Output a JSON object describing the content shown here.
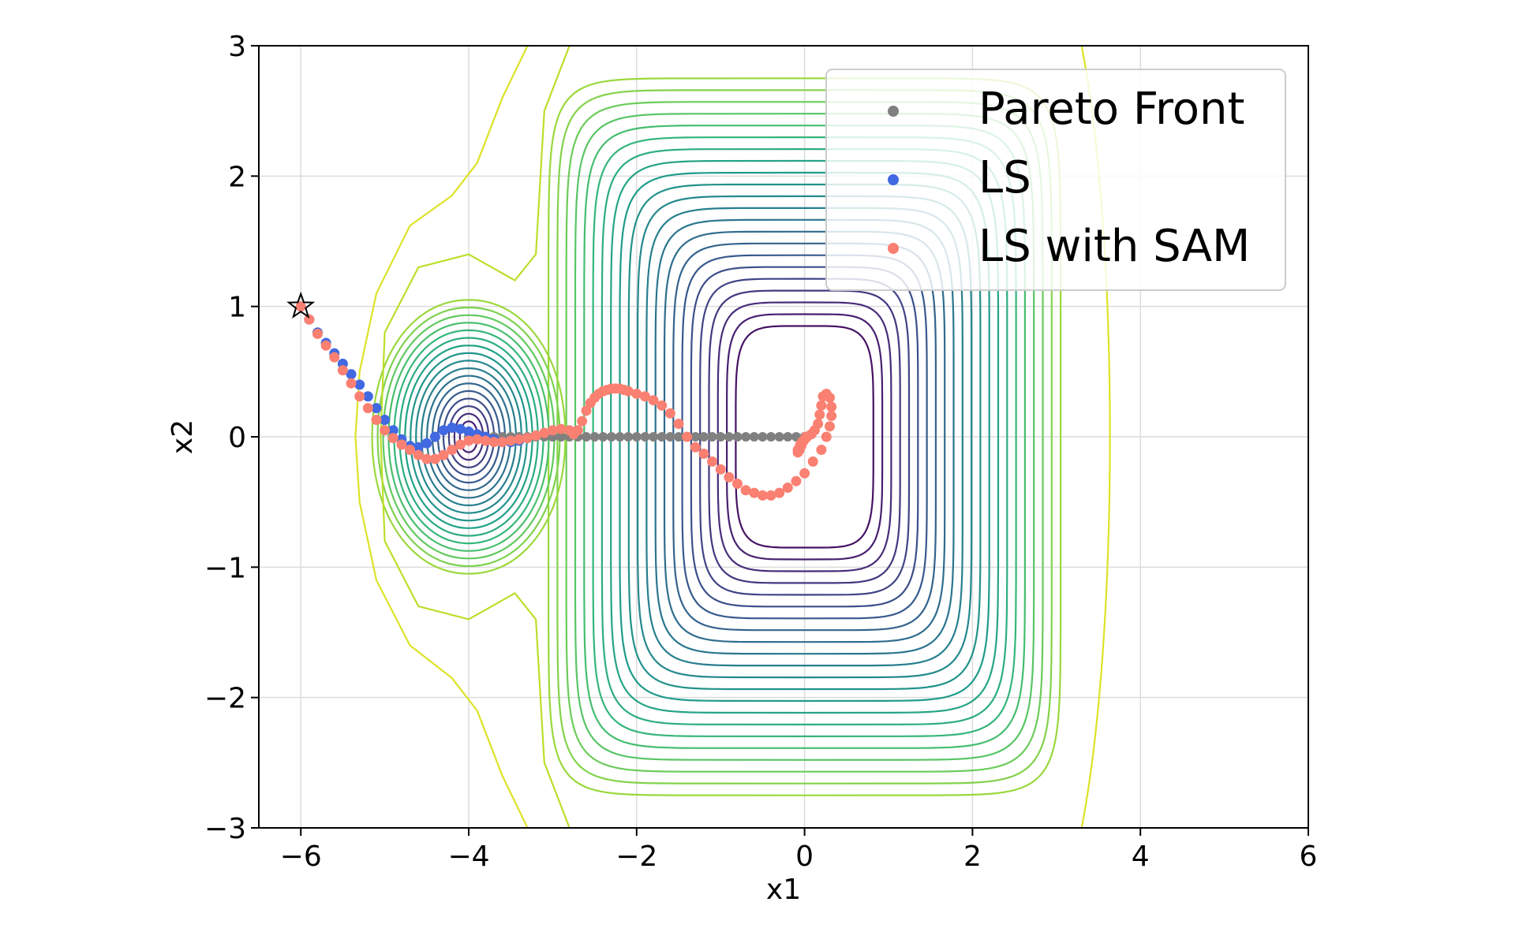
{
  "chart_data": {
    "type": "scatter",
    "title": "",
    "xlabel": "x1",
    "ylabel": "x2",
    "xlim": [
      -6.5,
      6
    ],
    "ylim": [
      -3,
      3
    ],
    "xticks": [
      -6,
      -4,
      -2,
      0,
      2,
      4,
      6
    ],
    "yticks": [
      -3,
      -2,
      -1,
      0,
      1,
      2,
      3
    ],
    "xtick_labels": [
      "−6",
      "−4",
      "−2",
      "0",
      "2",
      "4",
      "6"
    ],
    "ytick_labels": [
      "−3",
      "−2",
      "−1",
      "0",
      "1",
      "2",
      "3"
    ],
    "grid": true,
    "legend_position": "top-right",
    "background": "contour plot of two-minimum loss landscape (viridis), minima near (-4, 0) and (0, 0)",
    "start_marker": {
      "symbol": "star",
      "x": -6,
      "y": 1
    },
    "series": [
      {
        "name": "Pareto Front",
        "color": "#808080",
        "x_range": [
          -4,
          0
        ],
        "y": 0
      },
      {
        "name": "LS",
        "color": "#4169e1",
        "points": [
          [
            -6.0,
            1.0
          ],
          [
            -5.9,
            0.9
          ],
          [
            -5.8,
            0.8
          ],
          [
            -5.7,
            0.72
          ],
          [
            -5.6,
            0.64
          ],
          [
            -5.5,
            0.56
          ],
          [
            -5.4,
            0.48
          ],
          [
            -5.3,
            0.4
          ],
          [
            -5.2,
            0.31
          ],
          [
            -5.1,
            0.22
          ],
          [
            -5.0,
            0.13
          ],
          [
            -4.9,
            0.05
          ],
          [
            -4.8,
            -0.02
          ],
          [
            -4.7,
            -0.07
          ],
          [
            -4.6,
            -0.08
          ],
          [
            -4.5,
            -0.05
          ],
          [
            -4.4,
            0.0
          ],
          [
            -4.3,
            0.05
          ],
          [
            -4.2,
            0.07
          ],
          [
            -4.1,
            0.06
          ],
          [
            -4.0,
            0.04
          ],
          [
            -3.9,
            0.02
          ],
          [
            -3.8,
            0.0
          ],
          [
            -3.7,
            -0.02
          ],
          [
            -3.6,
            -0.04
          ],
          [
            -3.5,
            -0.04
          ],
          [
            -3.4,
            -0.03
          ]
        ]
      },
      {
        "name": "LS with SAM",
        "color": "#fa8072",
        "points": [
          [
            -6.0,
            1.0
          ],
          [
            -5.9,
            0.9
          ],
          [
            -5.8,
            0.79
          ],
          [
            -5.7,
            0.7
          ],
          [
            -5.6,
            0.61
          ],
          [
            -5.5,
            0.51
          ],
          [
            -5.4,
            0.41
          ],
          [
            -5.3,
            0.31
          ],
          [
            -5.2,
            0.22
          ],
          [
            -5.1,
            0.13
          ],
          [
            -5.0,
            0.05
          ],
          [
            -4.9,
            -0.01
          ],
          [
            -4.8,
            -0.06
          ],
          [
            -4.7,
            -0.1
          ],
          [
            -4.6,
            -0.14
          ],
          [
            -4.5,
            -0.17
          ],
          [
            -4.4,
            -0.17
          ],
          [
            -4.3,
            -0.14
          ],
          [
            -4.2,
            -0.1
          ],
          [
            -4.1,
            -0.06
          ],
          [
            -4.0,
            -0.03
          ],
          [
            -3.9,
            -0.02
          ],
          [
            -3.8,
            -0.03
          ],
          [
            -3.7,
            -0.04
          ],
          [
            -3.6,
            -0.04
          ],
          [
            -3.5,
            -0.03
          ],
          [
            -3.4,
            -0.02
          ],
          [
            -3.3,
            -0.01
          ],
          [
            -3.2,
            0.01
          ],
          [
            -3.1,
            0.03
          ],
          [
            -3.0,
            0.05
          ],
          [
            -2.9,
            0.06
          ],
          [
            -2.8,
            0.05
          ],
          [
            -2.75,
            0.02
          ],
          [
            -2.7,
            0.05
          ],
          [
            -2.65,
            0.12
          ],
          [
            -2.6,
            0.2
          ],
          [
            -2.55,
            0.26
          ],
          [
            -2.5,
            0.3
          ],
          [
            -2.45,
            0.33
          ],
          [
            -2.4,
            0.35
          ],
          [
            -2.35,
            0.36
          ],
          [
            -2.3,
            0.37
          ],
          [
            -2.25,
            0.37
          ],
          [
            -2.2,
            0.37
          ],
          [
            -2.15,
            0.36
          ],
          [
            -2.1,
            0.35
          ],
          [
            -2.0,
            0.33
          ],
          [
            -1.9,
            0.31
          ],
          [
            -1.8,
            0.28
          ],
          [
            -1.7,
            0.24
          ],
          [
            -1.6,
            0.18
          ],
          [
            -1.5,
            0.1
          ],
          [
            -1.4,
            0.0
          ],
          [
            -1.3,
            -0.08
          ],
          [
            -1.2,
            -0.13
          ],
          [
            -1.1,
            -0.19
          ],
          [
            -1.0,
            -0.25
          ],
          [
            -0.9,
            -0.31
          ],
          [
            -0.8,
            -0.36
          ],
          [
            -0.7,
            -0.41
          ],
          [
            -0.6,
            -0.43
          ],
          [
            -0.5,
            -0.45
          ],
          [
            -0.4,
            -0.45
          ],
          [
            -0.3,
            -0.43
          ],
          [
            -0.2,
            -0.39
          ],
          [
            -0.1,
            -0.34
          ],
          [
            0.0,
            -0.28
          ],
          [
            0.1,
            -0.19
          ],
          [
            0.2,
            -0.1
          ],
          [
            0.26,
            0.0
          ],
          [
            0.3,
            0.08
          ],
          [
            0.32,
            0.16
          ],
          [
            0.32,
            0.23
          ],
          [
            0.3,
            0.3
          ],
          [
            0.26,
            0.33
          ],
          [
            0.22,
            0.31
          ],
          [
            0.2,
            0.24
          ],
          [
            0.18,
            0.17
          ],
          [
            0.16,
            0.1
          ],
          [
            0.12,
            0.05
          ],
          [
            0.08,
            0.02
          ],
          [
            0.03,
            0.0
          ],
          [
            0.0,
            -0.02
          ],
          [
            -0.03,
            -0.04
          ],
          [
            -0.05,
            -0.06
          ],
          [
            -0.06,
            -0.08
          ],
          [
            -0.08,
            -0.1
          ],
          [
            -0.08,
            -0.12
          ],
          [
            -0.06,
            -0.1
          ],
          [
            -0.04,
            -0.07
          ],
          [
            -0.02,
            -0.04
          ],
          [
            0.0,
            -0.02
          ],
          [
            0.02,
            0.0
          ]
        ]
      }
    ]
  }
}
